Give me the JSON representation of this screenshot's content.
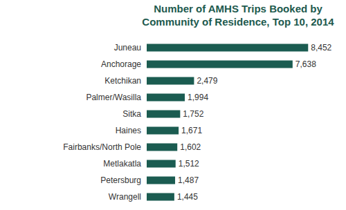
{
  "chart_data": {
    "type": "bar",
    "orientation": "horizontal",
    "title": "Number of AMHS Trips Booked by Community of Residence, Top 10, 2014",
    "categories": [
      "Juneau",
      "Anchorage",
      "Ketchikan",
      "Palmer/Wasilla",
      "Sitka",
      "Haines",
      "Fairbanks/North Pole",
      "Metlakatla",
      "Petersburg",
      "Wrangell"
    ],
    "values": [
      8452,
      7638,
      2479,
      1994,
      1752,
      1671,
      1602,
      1512,
      1487,
      1445
    ],
    "value_labels": [
      "8,452",
      "7,638",
      "2,479",
      "1,994",
      "1,752",
      "1,671",
      "1,602",
      "1,512",
      "1,487",
      "1,445"
    ],
    "color": "#1b5c51",
    "xlim": [
      0,
      10000
    ],
    "data_labels": true,
    "tick_labels": "y",
    "grid": false
  }
}
